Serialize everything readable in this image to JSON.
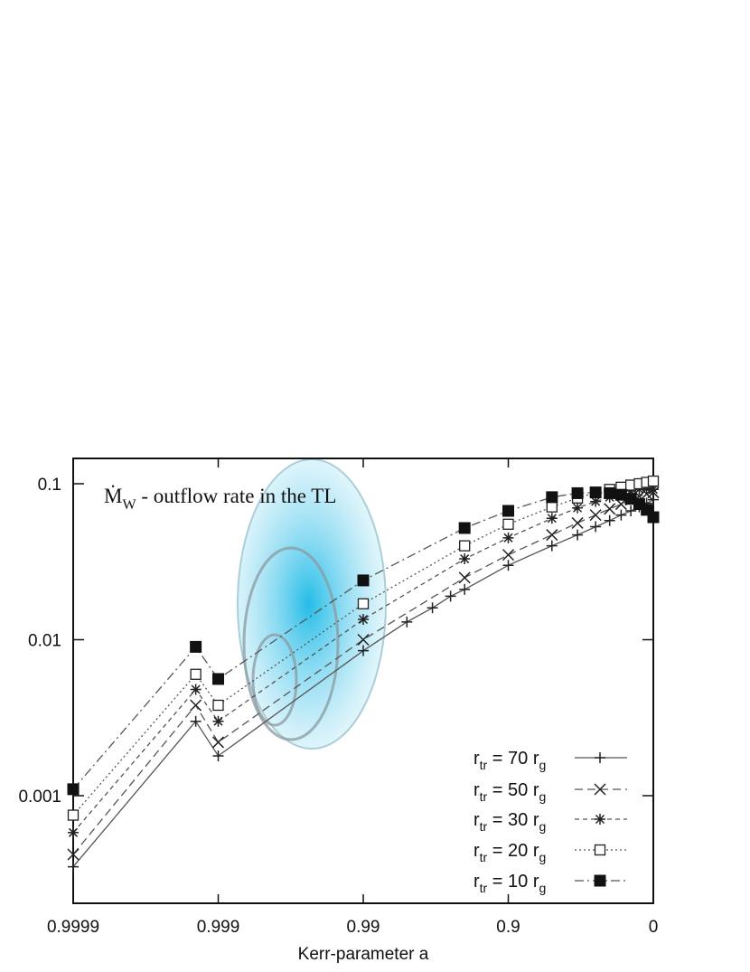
{
  "chart_data": {
    "type": "line",
    "xlabel": "Kerr-parameter a",
    "ylabel": "",
    "y_scale": "log",
    "x_scale": "log(1-a), reversed",
    "x_ticks": [
      "0.9999",
      "0.999",
      "0.99",
      "0.9",
      "0"
    ],
    "y_ticks": [
      "0.1",
      "0.01",
      "0.001"
    ],
    "ylim": [
      0.0002,
      0.13
    ],
    "annotation": {
      "symbol": "Ṁ",
      "subscript": "W",
      "text": " - outflow rate in the TL"
    },
    "legend_position": "bottom-right",
    "series": [
      {
        "name": "70",
        "label_base": "r",
        "label_sub": "tr",
        "label_mid": " = 70 r",
        "label_sub2": "g",
        "marker": "plus",
        "dash": "solid",
        "x": [
          0.9999,
          0.999,
          0.9993,
          0.99,
          0.98,
          0.97,
          0.96,
          0.95,
          0.9,
          0.8,
          0.7,
          0.6,
          0.5,
          0.4,
          0.3,
          0.2,
          0.1,
          0
        ],
        "values": [
          0.00035,
          0.0018,
          0.003,
          0.0085,
          0.013,
          0.016,
          0.019,
          0.021,
          0.03,
          0.04,
          0.047,
          0.053,
          0.058,
          0.063,
          0.067,
          0.071,
          0.075,
          0.079
        ]
      },
      {
        "name": "50",
        "label_base": "r",
        "label_sub": "tr",
        "label_mid": " = 50 r",
        "label_sub2": "g",
        "marker": "cross",
        "dash": "dashed",
        "x": [
          0.9999,
          0.999,
          0.9993,
          0.99,
          0.95,
          0.9,
          0.8,
          0.7,
          0.6,
          0.5,
          0.4,
          0.3,
          0.2,
          0.1,
          0
        ],
        "values": [
          0.00042,
          0.0022,
          0.0038,
          0.01,
          0.025,
          0.035,
          0.047,
          0.056,
          0.063,
          0.069,
          0.074,
          0.079,
          0.083,
          0.086,
          0.088
        ]
      },
      {
        "name": "30",
        "label_base": "r",
        "label_sub": "tr",
        "label_mid": " = 30 r",
        "label_sub2": "g",
        "marker": "star",
        "dash": "dashed-fine",
        "x": [
          0.9999,
          0.999,
          0.9993,
          0.99,
          0.95,
          0.9,
          0.8,
          0.7,
          0.6,
          0.5,
          0.4,
          0.3,
          0.2,
          0.1,
          0
        ],
        "values": [
          0.00058,
          0.003,
          0.0048,
          0.0135,
          0.033,
          0.045,
          0.06,
          0.07,
          0.077,
          0.082,
          0.087,
          0.09,
          0.092,
          0.093,
          0.092
        ]
      },
      {
        "name": "20",
        "label_base": "r",
        "label_sub": "tr",
        "label_mid": " = 20 r",
        "label_sub2": "g",
        "marker": "square-open",
        "dash": "dotted",
        "x": [
          0.9999,
          0.999,
          0.9993,
          0.99,
          0.95,
          0.9,
          0.8,
          0.7,
          0.6,
          0.5,
          0.4,
          0.3,
          0.2,
          0.1,
          0
        ],
        "values": [
          0.00075,
          0.0038,
          0.006,
          0.017,
          0.04,
          0.055,
          0.071,
          0.081,
          0.088,
          0.092,
          0.095,
          0.098,
          0.1,
          0.102,
          0.104
        ]
      },
      {
        "name": "10",
        "label_base": "r",
        "label_sub": "tr",
        "label_mid": " = 10 r",
        "label_sub2": "g",
        "marker": "square-filled",
        "dash": "dashdot",
        "x": [
          0.9999,
          0.999,
          0.9993,
          0.99,
          0.95,
          0.9,
          0.8,
          0.7,
          0.6,
          0.5,
          0.4,
          0.3,
          0.2,
          0.1,
          0
        ],
        "values": [
          0.0011,
          0.0056,
          0.009,
          0.024,
          0.052,
          0.067,
          0.082,
          0.087,
          0.088,
          0.087,
          0.085,
          0.08,
          0.074,
          0.068,
          0.061
        ]
      }
    ],
    "highlight_ellipses": {
      "color": "#5fd0ea",
      "sigma_levels": [
        1,
        2,
        3
      ]
    },
    "colors": {
      "ink": "#111111",
      "series_line": "#555555"
    }
  }
}
